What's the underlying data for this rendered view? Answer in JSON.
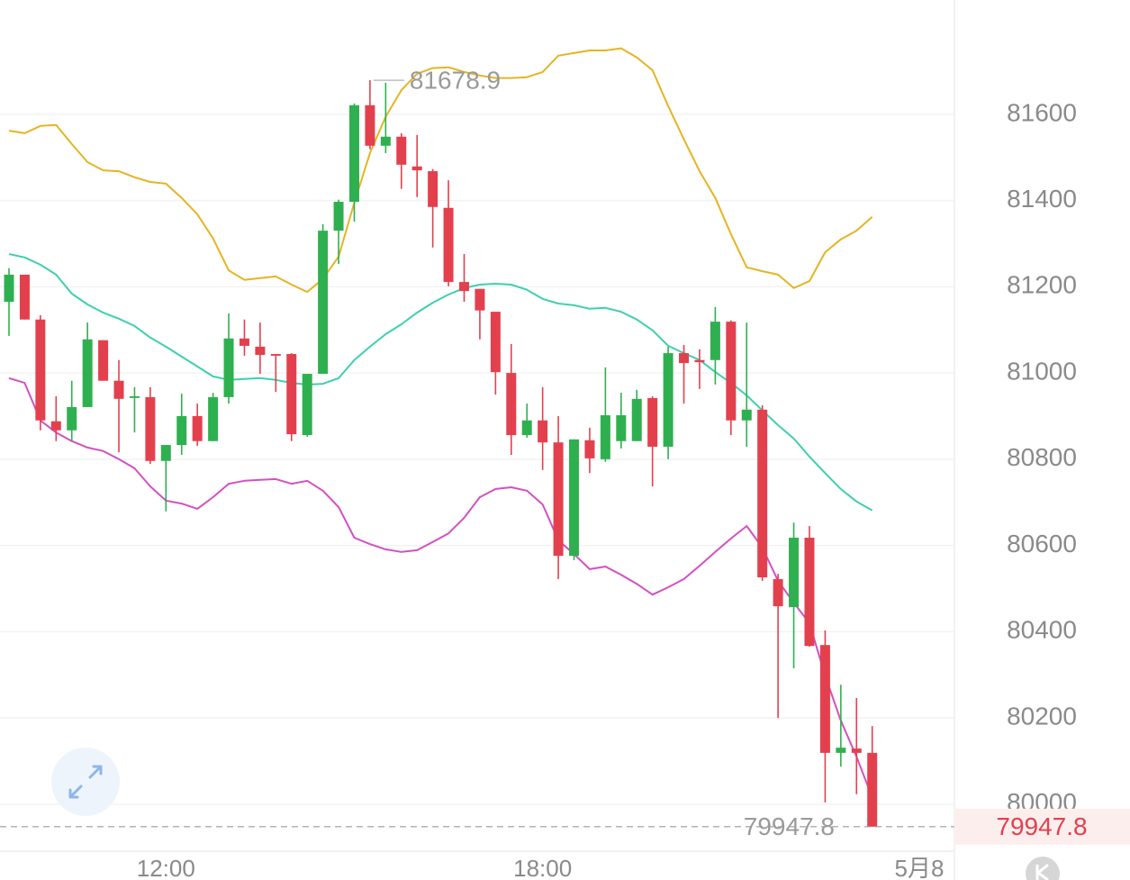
{
  "chart_data": {
    "type": "candlestick",
    "categories": [
      null,
      null,
      null,
      null,
      null,
      null,
      null,
      null,
      null,
      null,
      "12:00",
      null,
      null,
      null,
      null,
      null,
      null,
      null,
      null,
      null,
      null,
      null,
      null,
      null,
      null,
      null,
      null,
      null,
      null,
      null,
      null,
      null,
      null,
      null,
      "18:00",
      null,
      null,
      null,
      null,
      null,
      null,
      null,
      null,
      null,
      null,
      null,
      null,
      null,
      null,
      null,
      null,
      null,
      null,
      null,
      null,
      null,
      null,
      null,
      "5月8"
    ],
    "open": [
      81165,
      81228,
      81124,
      80888,
      80867,
      80921,
      81076,
      80982,
      80942,
      80944,
      80796,
      80833,
      80900,
      80842,
      80944,
      81080,
      81061,
      81044,
      81044,
      80856,
      80998,
      81330,
      81397,
      81621,
      81527,
      81548,
      81479,
      81468,
      81383,
      81211,
      81195,
      81142,
      81000,
      80856,
      80890,
      80839,
      80576,
      80844,
      80800,
      80842,
      80842,
      80942,
      80829,
      81046,
      81030,
      81030,
      81119,
      80890,
      80915,
      80522,
      80457,
      80618,
      80369,
      80119,
      80129,
      80119,
      null,
      null,
      null
    ],
    "high": [
      81243,
      81228,
      81134,
      80946,
      80982,
      81117,
      81076,
      81030,
      80967,
      80967,
      80833,
      80952,
      80929,
      80954,
      81138,
      81124,
      81117,
      81044,
      81046,
      80998,
      81345,
      81402,
      81625,
      81678.9,
      81673,
      81556,
      81552,
      81473,
      81447,
      81276,
      81195,
      81142,
      81067,
      80929,
      80967,
      80900,
      80846,
      80873,
      81013,
      80954,
      80961,
      80946,
      81061,
      81065,
      81055,
      81153,
      81122,
      81117,
      80925,
      80534,
      80653,
      80645,
      80403,
      80277,
      80246,
      80181,
      null,
      null,
      null
    ],
    "low": [
      81086,
      81124,
      80867,
      80842,
      80842,
      80921,
      80982,
      80816,
      80862,
      80789,
      80679,
      80810,
      80831,
      80842,
      80929,
      81040,
      80998,
      80956,
      80842,
      80852,
      80998,
      81253,
      81351,
      81519,
      81510,
      81427,
      81408,
      81291,
      81201,
      81165,
      81078,
      80950,
      80810,
      80850,
      80775,
      80522,
      80566,
      80768,
      80794,
      80825,
      80842,
      80737,
      80800,
      80929,
      80963,
      80973,
      80856,
      80829,
      80518,
      80200,
      80315,
      80365,
      80004,
      80087,
      80023,
      79947.8,
      null,
      null,
      null
    ],
    "close": [
      81228,
      81124,
      80890,
      80867,
      80921,
      81078,
      80982,
      80940,
      80946,
      80796,
      80833,
      80900,
      80842,
      80944,
      81080,
      81063,
      81042,
      81040,
      80858,
      80998,
      81330,
      81397,
      81621,
      81527,
      81548,
      81483,
      81470,
      81385,
      81211,
      81190,
      81145,
      81002,
      80856,
      80890,
      80839,
      80576,
      80846,
      80802,
      80902,
      80902,
      80940,
      80829,
      81046,
      81023,
      81025,
      81119,
      80890,
      80915,
      80526,
      80459,
      80618,
      80367,
      80119,
      80131,
      80119,
      79947.8,
      null,
      null,
      null
    ],
    "up_color": "#2fb050",
    "down_color": "#e3404e",
    "overlays": [
      {
        "color": "#e6b422",
        "values": [
          81562,
          81556,
          81573,
          81575,
          81531,
          81489,
          81470,
          81468,
          81454,
          81443,
          81439,
          81406,
          81368,
          81312,
          81238,
          81216,
          81220,
          81224,
          81205,
          81188,
          81218,
          81270,
          81395,
          81510,
          81594,
          81656,
          81694,
          81707,
          81709,
          81698,
          81690,
          81684,
          81684,
          81686,
          81698,
          81736,
          81742,
          81748,
          81748,
          81753,
          81732,
          81702,
          81619,
          81542,
          81468,
          81406,
          81322,
          81245,
          81236,
          81228,
          81197,
          81213,
          81280,
          81310,
          81330,
          81362,
          null,
          null,
          null
        ]
      },
      {
        "color": "#3fcfae",
        "values": [
          81276,
          81268,
          81251,
          81228,
          81184,
          81159,
          81140,
          81126,
          81109,
          81082,
          81061,
          81038,
          81015,
          80992,
          80984,
          80986,
          80988,
          80984,
          80977,
          80973,
          80975,
          80988,
          81030,
          81061,
          81090,
          81113,
          81140,
          81163,
          81182,
          81197,
          81205,
          81207,
          81205,
          81193,
          81172,
          81161,
          81157,
          81149,
          81151,
          81142,
          81124,
          81099,
          81063,
          81046,
          81030,
          81002,
          80977,
          80948,
          80913,
          80879,
          80848,
          80806,
          80768,
          80731,
          80702,
          80681,
          null,
          null,
          null
        ]
      },
      {
        "color": "#d350c2",
        "values": [
          80988,
          80977,
          80890,
          80862,
          80842,
          80827,
          80819,
          80800,
          80779,
          80737,
          80704,
          80697,
          80685,
          80712,
          80743,
          80750,
          80752,
          80754,
          80743,
          80750,
          80727,
          80689,
          80618,
          80603,
          80591,
          80585,
          80589,
          80608,
          80628,
          80664,
          80712,
          80731,
          80735,
          80727,
          80695,
          80612,
          80580,
          80545,
          80551,
          80532,
          80511,
          80486,
          80503,
          80522,
          80553,
          80585,
          80616,
          80645,
          80595,
          80518,
          80467,
          80420,
          80298,
          80194,
          80110,
          80016,
          null,
          null,
          null
        ]
      }
    ],
    "ylim": [
      79891,
      81865
    ],
    "yticks": [
      80000,
      80200,
      80400,
      80600,
      80800,
      81000,
      81200,
      81400,
      81600
    ],
    "grid": true,
    "high_marker": 81678.9,
    "last_price": 79947.8
  }
}
